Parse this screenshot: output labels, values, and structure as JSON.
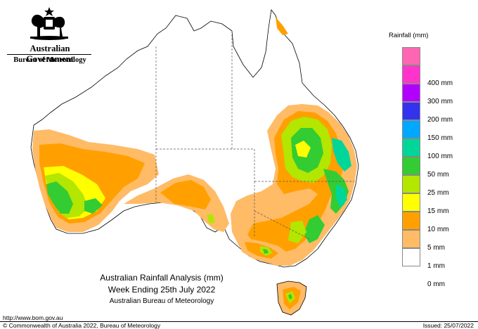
{
  "header": {
    "government": "Australian Government",
    "agency": "Bureau of Meteorology"
  },
  "legend": {
    "title": "Rainfall (mm)",
    "items": [
      {
        "label": "",
        "color": "#ff66b2"
      },
      {
        "label": "400 mm",
        "color": "#ff33cc"
      },
      {
        "label": "300 mm",
        "color": "#b200ff"
      },
      {
        "label": "200 mm",
        "color": "#3333ee"
      },
      {
        "label": "150 mm",
        "color": "#00a8ff"
      },
      {
        "label": "100 mm",
        "color": "#00d69a"
      },
      {
        "label": "50 mm",
        "color": "#33cc33"
      },
      {
        "label": "25 mm",
        "color": "#b3e600"
      },
      {
        "label": "15 mm",
        "color": "#ffff00"
      },
      {
        "label": "10 mm",
        "color": "#ffa000"
      },
      {
        "label": "5 mm",
        "color": "#ffbb66"
      },
      {
        "label": "1 mm",
        "color": "#ffffff"
      },
      {
        "label": "0 mm",
        "color": "#ffffff"
      }
    ]
  },
  "caption": {
    "title": "Australian Rainfall Analysis (mm)",
    "period": "Week Ending 25th July 2022",
    "source": "Australian Bureau of Meteorology"
  },
  "footer": {
    "url": "http://www.bom.gov.au",
    "copyright": "© Commonwealth of Australia 2022, Bureau of Meteorology",
    "issued": "Issued: 25/07/2022"
  }
}
